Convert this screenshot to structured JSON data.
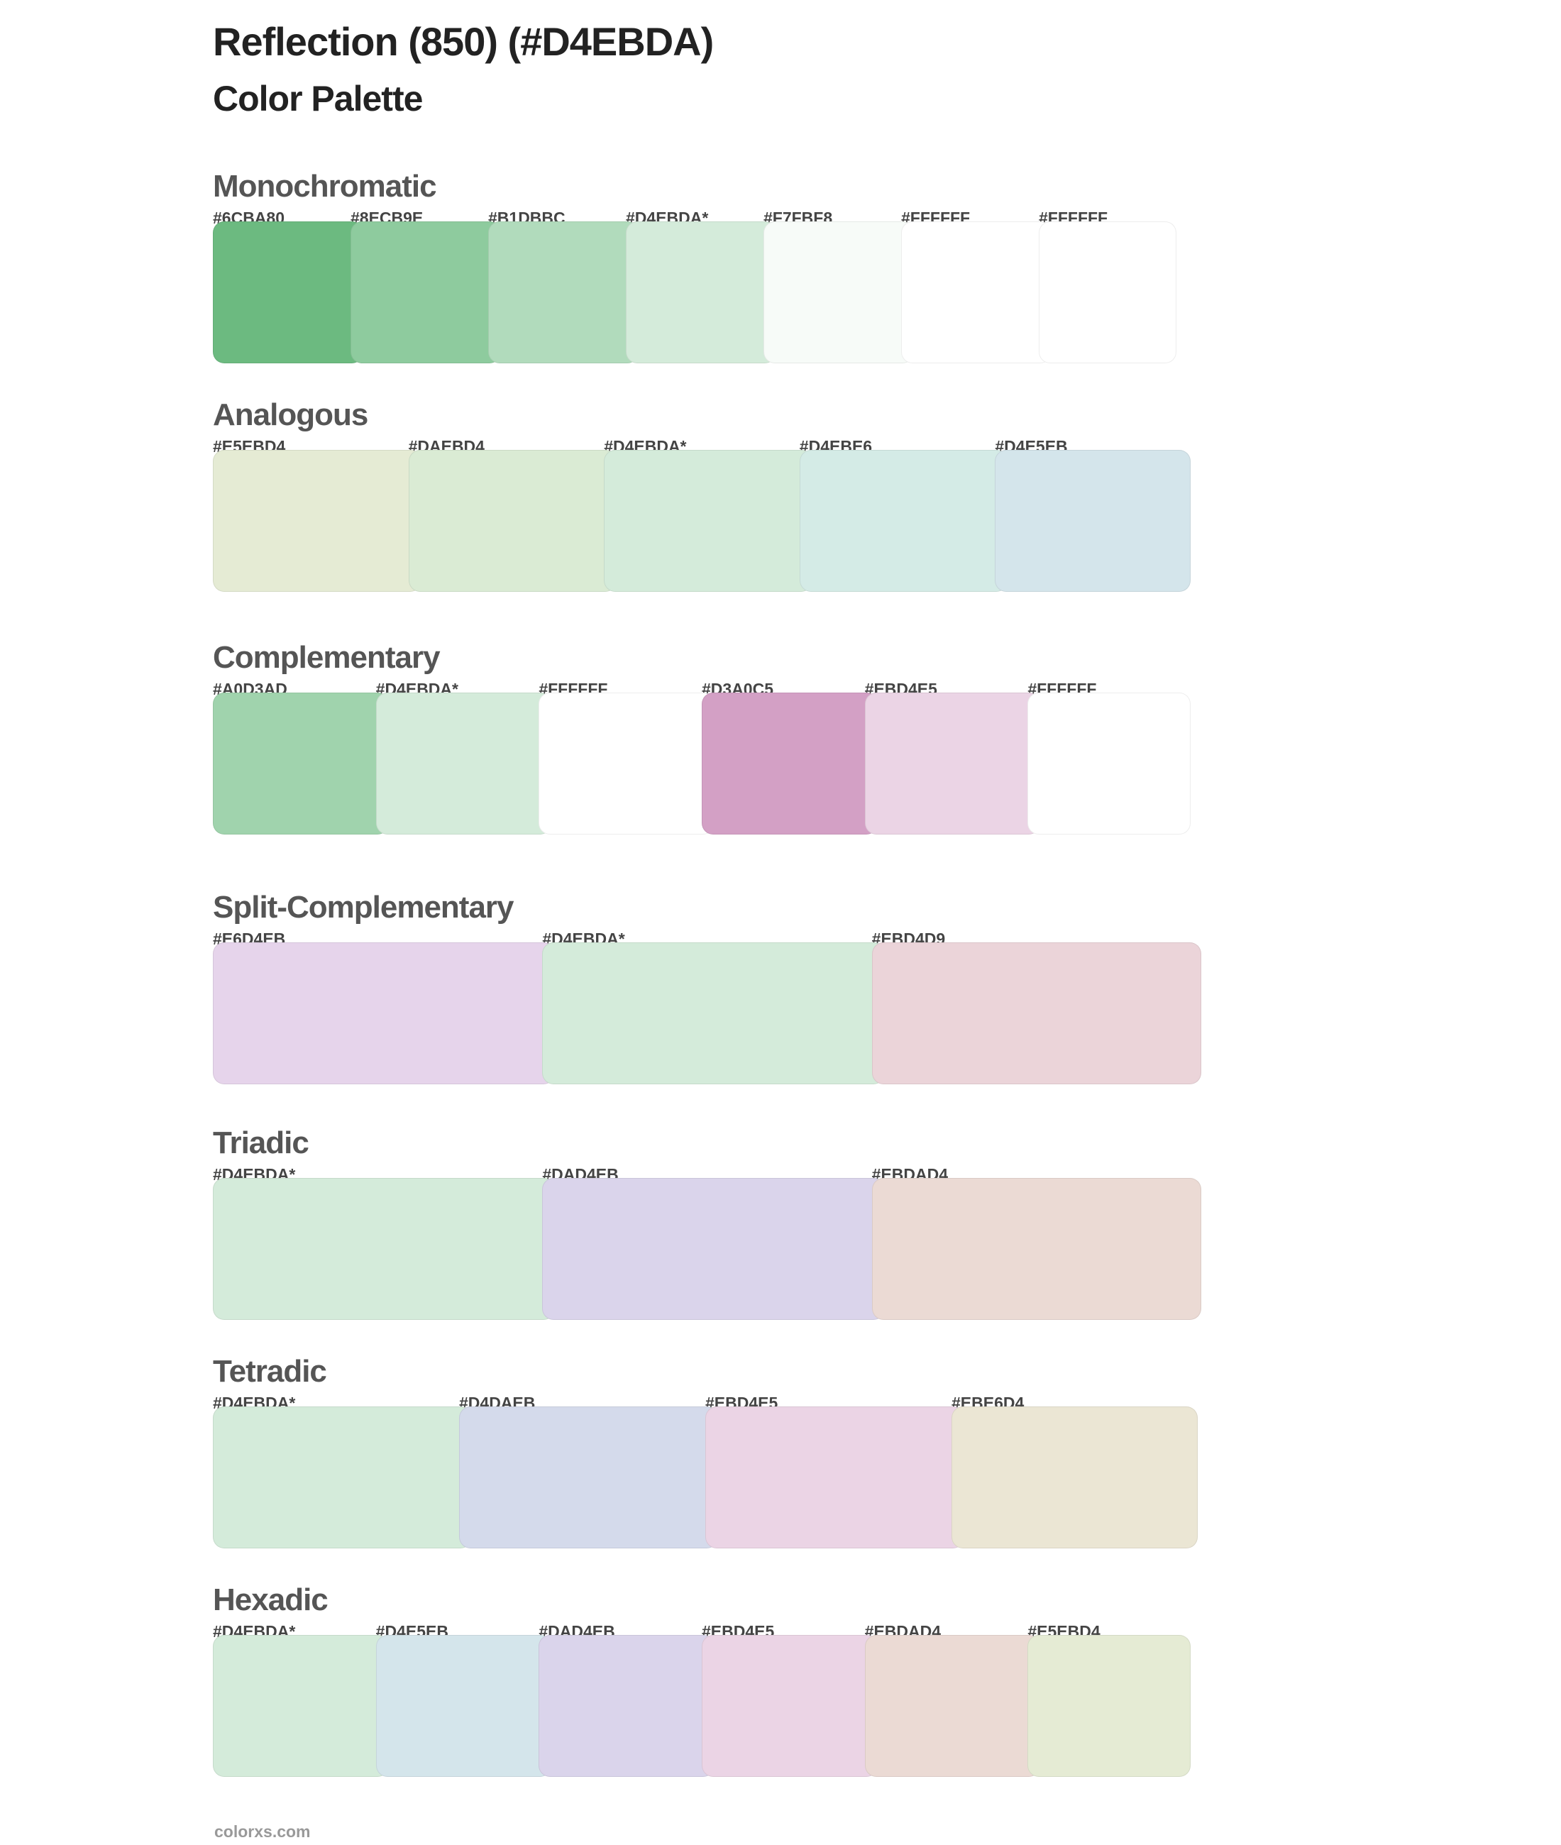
{
  "header": {
    "title": "Reflection (850) (#D4EBDA)",
    "subtitle": "Color Palette"
  },
  "sections": [
    {
      "name": "Monochromatic",
      "colors": [
        {
          "label": "#6CBA80",
          "hex": "#6CBA80"
        },
        {
          "label": "#8ECB9E",
          "hex": "#8ECB9E"
        },
        {
          "label": "#B1DBBC",
          "hex": "#B1DBBC"
        },
        {
          "label": "#D4EBDA*",
          "hex": "#D4EBDA"
        },
        {
          "label": "#F7FBF8",
          "hex": "#F7FBF8"
        },
        {
          "label": "#FFFFFF",
          "hex": "#FFFFFF"
        },
        {
          "label": "#FFFFFF",
          "hex": "#FFFFFF"
        }
      ]
    },
    {
      "name": "Analogous",
      "colors": [
        {
          "label": "#E5EBD4",
          "hex": "#E5EBD4"
        },
        {
          "label": "#DAEBD4",
          "hex": "#DAEBD4"
        },
        {
          "label": "#D4EBDA*",
          "hex": "#D4EBDA"
        },
        {
          "label": "#D4EBE6",
          "hex": "#D4EBE6"
        },
        {
          "label": "#D4E5EB",
          "hex": "#D4E5EB"
        }
      ]
    },
    {
      "name": "Complementary",
      "colors": [
        {
          "label": "#A0D3AD",
          "hex": "#A0D3AD"
        },
        {
          "label": "#D4EBDA*",
          "hex": "#D4EBDA"
        },
        {
          "label": "#FFFFFF",
          "hex": "#FFFFFF"
        },
        {
          "label": "#D3A0C5",
          "hex": "#D3A0C5"
        },
        {
          "label": "#EBD4E5",
          "hex": "#EBD4E5"
        },
        {
          "label": "#FFFFFF",
          "hex": "#FFFFFF"
        }
      ]
    },
    {
      "name": "Split-Complementary",
      "colors": [
        {
          "label": "#E6D4EB",
          "hex": "#E6D4EB"
        },
        {
          "label": "#D4EBDA*",
          "hex": "#D4EBDA"
        },
        {
          "label": "#EBD4D9",
          "hex": "#EBD4D9"
        }
      ]
    },
    {
      "name": "Triadic",
      "colors": [
        {
          "label": "#D4EBDA*",
          "hex": "#D4EBDA"
        },
        {
          "label": "#DAD4EB",
          "hex": "#DAD4EB"
        },
        {
          "label": "#EBDAD4",
          "hex": "#EBDAD4"
        }
      ]
    },
    {
      "name": "Tetradic",
      "colors": [
        {
          "label": "#D4EBDA*",
          "hex": "#D4EBDA"
        },
        {
          "label": "#D4DAEB",
          "hex": "#D4DAEB"
        },
        {
          "label": "#EBD4E5",
          "hex": "#EBD4E5"
        },
        {
          "label": "#EBE6D4",
          "hex": "#EBE6D4"
        }
      ]
    },
    {
      "name": "Hexadic",
      "colors": [
        {
          "label": "#D4EBDA*",
          "hex": "#D4EBDA"
        },
        {
          "label": "#D4E5EB",
          "hex": "#D4E5EB"
        },
        {
          "label": "#DAD4EB",
          "hex": "#DAD4EB"
        },
        {
          "label": "#EBD4E5",
          "hex": "#EBD4E5"
        },
        {
          "label": "#EBDAD4",
          "hex": "#EBDAD4"
        },
        {
          "label": "#E5EBD4",
          "hex": "#E5EBD4"
        }
      ]
    }
  ],
  "footer": {
    "text": "colorxs.com"
  }
}
